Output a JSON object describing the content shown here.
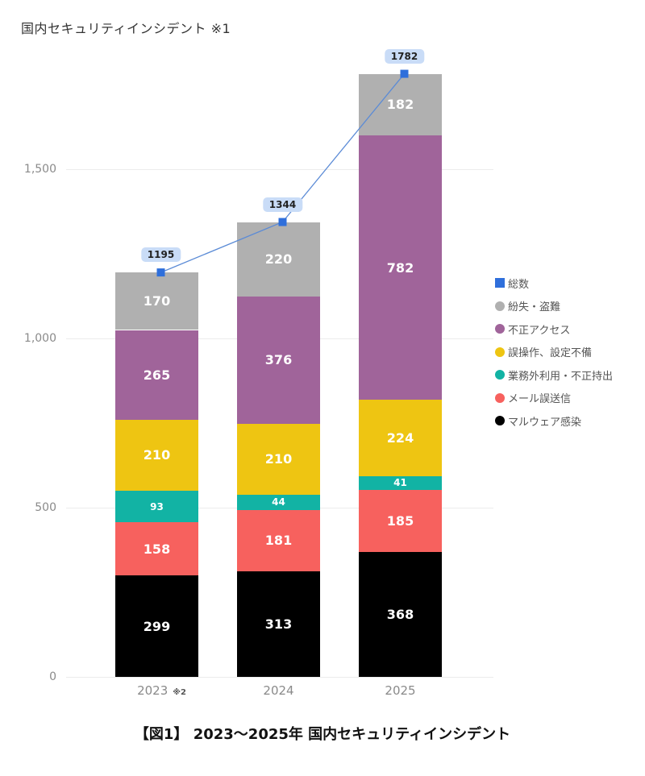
{
  "title": "国内セキュリティインシデント ※1",
  "caption": "【図1】 2023～2025年 国内セキュリティインシデント",
  "y_axis": {
    "ticks": [
      {
        "label": "0",
        "value": 0
      },
      {
        "label": "500",
        "value": 500
      },
      {
        "label": "1,000",
        "value": 1000
      },
      {
        "label": "1,500",
        "value": 1500
      }
    ]
  },
  "x_axis": {
    "labels": [
      {
        "label": "2023",
        "note": "※2"
      },
      {
        "label": "2024",
        "note": ""
      },
      {
        "label": "2025",
        "note": ""
      }
    ]
  },
  "legend": [
    {
      "label": "総数",
      "color": "#2f6fdb",
      "shape": "square"
    },
    {
      "label": "紛失・盗難",
      "color": "#b0b0b0",
      "shape": "circle"
    },
    {
      "label": "不正アクセス",
      "color": "#a0649a",
      "shape": "circle"
    },
    {
      "label": "誤操作、設定不備",
      "color": "#eec512",
      "shape": "circle"
    },
    {
      "label": "業務外利用・不正持出",
      "color": "#12b3a4",
      "shape": "circle"
    },
    {
      "label": "メール誤送信",
      "color": "#f7615e",
      "shape": "circle"
    },
    {
      "label": "マルウェア感染",
      "color": "#000000",
      "shape": "circle"
    }
  ],
  "totals": [
    "1195",
    "1344",
    "1782"
  ],
  "chart_data": {
    "type": "bar",
    "stacked": true,
    "title": "国内セキュリティインシデント ※1",
    "xlabel": "",
    "ylabel": "",
    "ylim": [
      0,
      1800
    ],
    "grid": true,
    "legend_position": "right",
    "categories": [
      "2023",
      "2024",
      "2025"
    ],
    "series": [
      {
        "name": "マルウェア感染",
        "color": "#000000",
        "values": [
          299,
          313,
          368
        ]
      },
      {
        "name": "メール誤送信",
        "color": "#f7615e",
        "values": [
          158,
          181,
          185
        ]
      },
      {
        "name": "業務外利用・不正持出",
        "color": "#12b3a4",
        "values": [
          93,
          44,
          41
        ]
      },
      {
        "name": "誤操作、設定不備",
        "color": "#eec512",
        "values": [
          210,
          210,
          224
        ]
      },
      {
        "name": "不正アクセス",
        "color": "#a0649a",
        "values": [
          265,
          376,
          782
        ]
      },
      {
        "name": "紛失・盗難",
        "color": "#b0b0b0",
        "values": [
          170,
          220,
          182
        ]
      }
    ],
    "line_series": {
      "name": "総数",
      "type": "line",
      "color": "#2f6fdb",
      "values": [
        1195,
        1344,
        1782
      ]
    },
    "annotations": [
      "2023 ※2"
    ]
  }
}
